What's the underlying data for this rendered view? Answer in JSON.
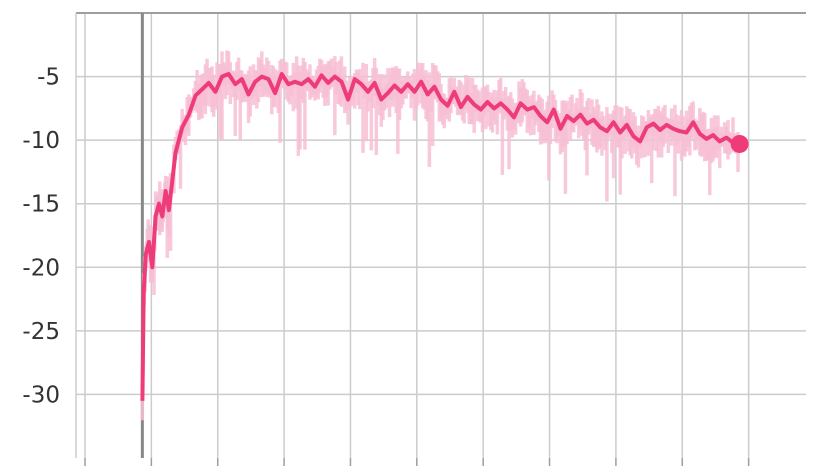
{
  "chart_data": {
    "type": "line",
    "title": "",
    "xlabel": "",
    "ylabel": "",
    "ylim": [
      -35,
      0
    ],
    "y_ticks": [
      "-5",
      "-10",
      "-15",
      "-20",
      "-25",
      "-30"
    ],
    "x_tick_count": 11,
    "grid": true,
    "legend": "none",
    "colors": {
      "series": "#ee3c7a",
      "band": "#f7bfd5",
      "grid": "#cccccc",
      "axis": "#9e9e9e",
      "zero_line": "#888888"
    },
    "series": [
      {
        "x": [
          0,
          0.02,
          0.05,
          0.1,
          0.15,
          0.2,
          0.25,
          0.3,
          0.35,
          0.4,
          0.5,
          0.6,
          0.7,
          0.8,
          0.9,
          1.0,
          1.1,
          1.2,
          1.3,
          1.4,
          1.5,
          1.6,
          1.7,
          1.8,
          1.9,
          2.0,
          2.1,
          2.2,
          2.3,
          2.4,
          2.5,
          2.6,
          2.7,
          2.8,
          2.9,
          3.0,
          3.1,
          3.2,
          3.3,
          3.4,
          3.5,
          3.6,
          3.7,
          3.8,
          3.9,
          4.0,
          4.1,
          4.2,
          4.3,
          4.4,
          4.5,
          4.6,
          4.7,
          4.8,
          4.9,
          5.0,
          5.1,
          5.2,
          5.3,
          5.4,
          5.5,
          5.6,
          5.7,
          5.8,
          5.9,
          6.0,
          6.1,
          6.2,
          6.3,
          6.4,
          6.5,
          6.6,
          6.7,
          6.8,
          6.9,
          7.0,
          7.1,
          7.2,
          7.3,
          7.4,
          7.5,
          7.6,
          7.7,
          7.8,
          7.9,
          8.0,
          8.1,
          8.2,
          8.3,
          8.4,
          8.5,
          8.6,
          8.7,
          8.8,
          8.9,
          9.0
        ],
        "y": [
          -30.5,
          -22,
          -19,
          -18,
          -20,
          -16,
          -15,
          -16,
          -14,
          -15.5,
          -11,
          -9,
          -8,
          -6.5,
          -6,
          -5.5,
          -6.2,
          -5,
          -4.8,
          -5.6,
          -5.2,
          -6.4,
          -5.4,
          -5,
          -5.2,
          -6.3,
          -4.8,
          -5.6,
          -5.4,
          -5.6,
          -5.2,
          -5.8,
          -4.9,
          -5.5,
          -5,
          -5.4,
          -6.8,
          -5.2,
          -5.6,
          -6.2,
          -5.5,
          -6.8,
          -6.3,
          -5.7,
          -6.2,
          -5.6,
          -6.2,
          -5.4,
          -6.4,
          -5.8,
          -6.8,
          -7.3,
          -6.2,
          -7.4,
          -6.6,
          -7.2,
          -7.6,
          -7.0,
          -7.5,
          -7.1,
          -7.6,
          -8.2,
          -7.1,
          -7.6,
          -7.4,
          -8.1,
          -8.6,
          -7.6,
          -9.1,
          -8.1,
          -8.5,
          -8.0,
          -8.7,
          -8.4,
          -9.0,
          -9.3,
          -8.6,
          -9.4,
          -8.8,
          -9.7,
          -10.1,
          -9.0,
          -8.7,
          -9.2,
          -8.8,
          -9.1,
          -9.3,
          -9.4,
          -8.6,
          -9.5,
          -9.9,
          -9.6,
          -10.1,
          -9.8,
          -10.2,
          -10.3
        ]
      }
    ]
  }
}
